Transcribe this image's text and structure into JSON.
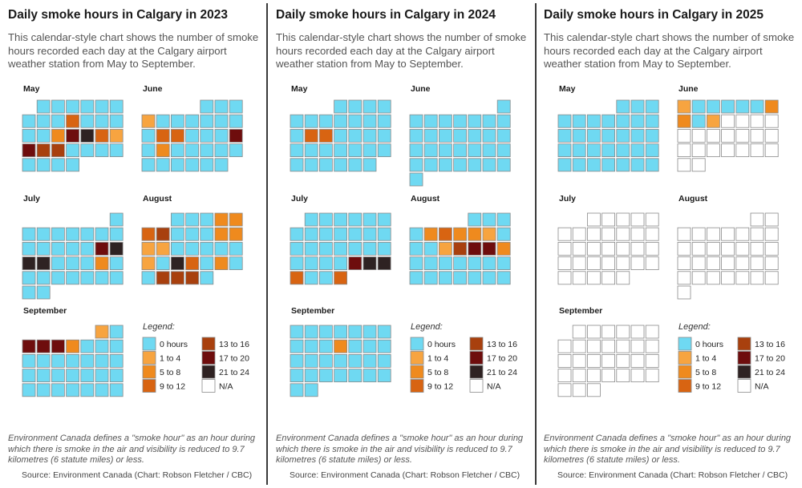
{
  "colors": {
    "0": "#6fd9f2",
    "1": "#f7a440",
    "2": "#ef8a1e",
    "3": "#d86412",
    "4": "#a8400e",
    "5": "#6e0d0d",
    "6": "#2e2222",
    "na": "#ffffff",
    "cell_stroke": "#8a8a8a"
  },
  "legend": {
    "title": "Legend:",
    "items": [
      {
        "key": "0",
        "label": "0 hours"
      },
      {
        "key": "1",
        "label": "1 to 4"
      },
      {
        "key": "2",
        "label": "5 to 8"
      },
      {
        "key": "3",
        "label": "9 to 12"
      },
      {
        "key": "4",
        "label": "13 to 16"
      },
      {
        "key": "5",
        "label": "17 to 20"
      },
      {
        "key": "6",
        "label": "21 to 24"
      },
      {
        "key": "na",
        "label": "N/A"
      }
    ]
  },
  "chart_data": [
    {
      "type": "calendar-heatmap",
      "title": "Daily smoke hours in Calgary in 2023",
      "subtitle": "This calendar-style chart shows the number of smoke hours recorded each day at the Calgary airport weather station from May to September.",
      "value_legend": "0=0 hours, 1=1 to 4, 2=5 to 8, 3=9 to 12, 4=13 to 16, 5=17 to 20, 6=21 to 24, na=N/A",
      "months": [
        {
          "name": "May",
          "offset": 1,
          "days": [
            "0",
            "0",
            "0",
            "0",
            "0",
            "0",
            "0",
            "0",
            "0",
            "3",
            "0",
            "0",
            "0",
            "0",
            "0",
            "2",
            "5",
            "6",
            "3",
            "1",
            "5",
            "4",
            "4",
            "0",
            "0",
            "0",
            "0",
            "0",
            "0",
            "0",
            "0"
          ]
        },
        {
          "name": "June",
          "offset": 4,
          "days": [
            "0",
            "0",
            "0",
            "1",
            "0",
            "0",
            "0",
            "0",
            "0",
            "0",
            "0",
            "3",
            "3",
            "0",
            "0",
            "0",
            "5",
            "0",
            "2",
            "0",
            "0",
            "0",
            "0",
            "0",
            "0",
            "0",
            "0",
            "0",
            "0",
            "0"
          ]
        },
        {
          "name": "July",
          "offset": 6,
          "days": [
            "0",
            "0",
            "0",
            "0",
            "0",
            "0",
            "0",
            "0",
            "0",
            "0",
            "0",
            "0",
            "0",
            "5",
            "6",
            "6",
            "6",
            "0",
            "0",
            "0",
            "2",
            "0",
            "0",
            "0",
            "0",
            "0",
            "0",
            "0",
            "0",
            "0",
            "0"
          ]
        },
        {
          "name": "August",
          "offset": 2,
          "days": [
            "0",
            "0",
            "0",
            "2",
            "2",
            "3",
            "4",
            "0",
            "0",
            "0",
            "2",
            "2",
            "1",
            "1",
            "0",
            "0",
            "0",
            "0",
            "0",
            "1",
            "0",
            "6",
            "3",
            "0",
            "2",
            "0",
            "0",
            "4",
            "4",
            "4",
            "0"
          ]
        },
        {
          "name": "September",
          "offset": 5,
          "days": [
            "1",
            "0",
            "5",
            "5",
            "5",
            "2",
            "0",
            "0",
            "0",
            "0",
            "0",
            "0",
            "0",
            "0",
            "0",
            "0",
            "0",
            "0",
            "0",
            "0",
            "0",
            "0",
            "0",
            "0",
            "0",
            "0",
            "0",
            "0",
            "0",
            "0"
          ]
        }
      ],
      "footnote": "Environment Canada defines a \"smoke hour\" as an hour during which there is smoke in the air and visibility is reduced to 9.7 kilometres (6 statute miles) or less.",
      "source": "Source: Environment Canada (Chart: Robson Fletcher / CBC)"
    },
    {
      "type": "calendar-heatmap",
      "title": "Daily smoke hours in Calgary in 2024",
      "subtitle": "This calendar-style chart shows the number of smoke hours recorded each day at the Calgary airport weather station from May to September.",
      "value_legend": "0=0 hours, 1=1 to 4, 2=5 to 8, 3=9 to 12, 4=13 to 16, 5=17 to 20, 6=21 to 24, na=N/A",
      "months": [
        {
          "name": "May",
          "offset": 3,
          "days": [
            "0",
            "0",
            "0",
            "0",
            "0",
            "0",
            "0",
            "0",
            "0",
            "0",
            "0",
            "0",
            "3",
            "3",
            "0",
            "0",
            "0",
            "0",
            "0",
            "0",
            "0",
            "0",
            "0",
            "0",
            "0",
            "0",
            "0",
            "0",
            "0",
            "0",
            "0"
          ]
        },
        {
          "name": "June",
          "offset": 6,
          "days": [
            "0",
            "0",
            "0",
            "0",
            "0",
            "0",
            "0",
            "0",
            "0",
            "0",
            "0",
            "0",
            "0",
            "0",
            "0",
            "0",
            "0",
            "0",
            "0",
            "0",
            "0",
            "0",
            "0",
            "0",
            "0",
            "0",
            "0",
            "0",
            "0",
            "0"
          ]
        },
        {
          "name": "July",
          "offset": 1,
          "days": [
            "0",
            "0",
            "0",
            "0",
            "0",
            "0",
            "0",
            "0",
            "0",
            "0",
            "0",
            "0",
            "0",
            "0",
            "0",
            "0",
            "0",
            "0",
            "0",
            "0",
            "0",
            "0",
            "0",
            "0",
            "5",
            "6",
            "6",
            "3",
            "0",
            "0",
            "3"
          ]
        },
        {
          "name": "August",
          "offset": 4,
          "days": [
            "0",
            "0",
            "0",
            "0",
            "2",
            "3",
            "2",
            "2",
            "1",
            "0",
            "0",
            "0",
            "1",
            "4",
            "5",
            "5",
            "2",
            "0",
            "0",
            "0",
            "0",
            "0",
            "0",
            "0",
            "0",
            "0",
            "0",
            "0",
            "0",
            "0",
            "0"
          ]
        },
        {
          "name": "September",
          "offset": 0,
          "days": [
            "0",
            "0",
            "0",
            "0",
            "0",
            "0",
            "0",
            "0",
            "0",
            "0",
            "2",
            "0",
            "0",
            "0",
            "0",
            "0",
            "0",
            "0",
            "0",
            "0",
            "0",
            "0",
            "0",
            "0",
            "0",
            "0",
            "0",
            "0",
            "0",
            "0"
          ]
        }
      ],
      "footnote": "Environment Canada defines a \"smoke hour\" as an hour during which there is smoke in the air and visibility is reduced to 9.7 kilometres (6 statute miles) or less.",
      "source": "Source: Environment Canada (Chart: Robson Fletcher / CBC)"
    },
    {
      "type": "calendar-heatmap",
      "title": "Daily smoke hours in Calgary in 2025",
      "subtitle": "This calendar-style chart shows the number of smoke hours recorded each day at the Calgary airport weather station from May to September.",
      "value_legend": "0=0 hours, 1=1 to 4, 2=5 to 8, 3=9 to 12, 4=13 to 16, 5=17 to 20, 6=21 to 24, na=N/A",
      "months": [
        {
          "name": "May",
          "offset": 4,
          "days": [
            "0",
            "0",
            "0",
            "0",
            "0",
            "0",
            "0",
            "0",
            "0",
            "0",
            "0",
            "0",
            "0",
            "0",
            "0",
            "0",
            "0",
            "0",
            "0",
            "0",
            "0",
            "0",
            "0",
            "0",
            "0",
            "0",
            "0",
            "0",
            "0",
            "0",
            "0"
          ]
        },
        {
          "name": "June",
          "offset": 0,
          "days": [
            "1",
            "0",
            "0",
            "0",
            "0",
            "0",
            "2",
            "2",
            "0",
            "1",
            "na",
            "na",
            "na",
            "na",
            "na",
            "na",
            "na",
            "na",
            "na",
            "na",
            "na",
            "na",
            "na",
            "na",
            "na",
            "na",
            "na",
            "na",
            "na",
            "na"
          ]
        },
        {
          "name": "July",
          "offset": 2,
          "days": [
            "na",
            "na",
            "na",
            "na",
            "na",
            "na",
            "na",
            "na",
            "na",
            "na",
            "na",
            "na",
            "na",
            "na",
            "na",
            "na",
            "na",
            "na",
            "na",
            "na",
            "na",
            "na",
            "na",
            "na",
            "na",
            "na",
            "na",
            "na",
            "na",
            "na",
            "na"
          ]
        },
        {
          "name": "August",
          "offset": 5,
          "days": [
            "na",
            "na",
            "na",
            "na",
            "na",
            "na",
            "na",
            "na",
            "na",
            "na",
            "na",
            "na",
            "na",
            "na",
            "na",
            "na",
            "na",
            "na",
            "na",
            "na",
            "na",
            "na",
            "na",
            "na",
            "na",
            "na",
            "na",
            "na",
            "na",
            "na",
            "na"
          ]
        },
        {
          "name": "September",
          "offset": 1,
          "days": [
            "na",
            "na",
            "na",
            "na",
            "na",
            "na",
            "na",
            "na",
            "na",
            "na",
            "na",
            "na",
            "na",
            "na",
            "na",
            "na",
            "na",
            "na",
            "na",
            "na",
            "na",
            "na",
            "na",
            "na",
            "na",
            "na",
            "na",
            "na",
            "na",
            "na"
          ]
        }
      ],
      "footnote": "Environment Canada defines a \"smoke hour\" as an hour during which there is smoke in the air and visibility is reduced to 9.7 kilometres (6 statute miles) or less.",
      "source": "Source: Environment Canada (Chart: Robson Fletcher / CBC)"
    }
  ]
}
